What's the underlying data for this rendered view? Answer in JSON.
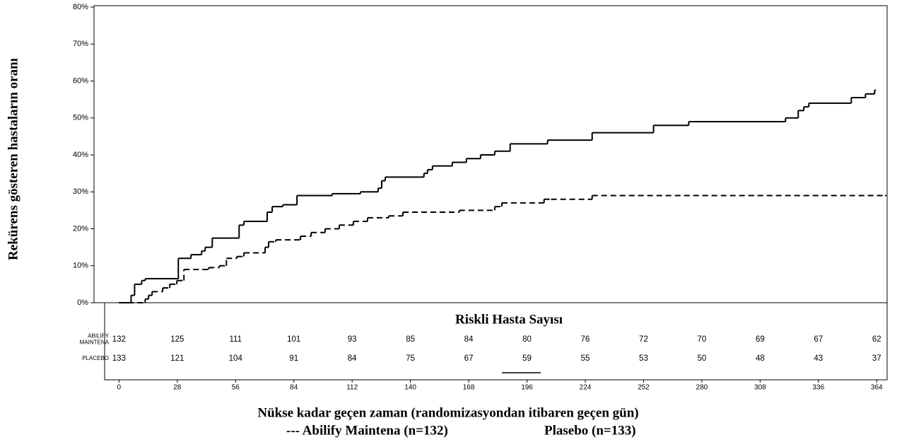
{
  "chart_data": {
    "type": "step",
    "y_label": "Rekürens gösteren hastaların oranı",
    "x_label": "Nükse kadar geçen zaman (randomizasyondan itibaren geçen gün)",
    "xlim": [
      -12,
      369
    ],
    "ylim": [
      0,
      80
    ],
    "xticks": [
      0,
      28,
      56,
      84,
      112,
      140,
      168,
      196,
      224,
      252,
      280,
      308,
      336,
      364
    ],
    "yticks": [
      {
        "value": 0,
        "label": "0%"
      },
      {
        "value": 10,
        "label": "10%"
      },
      {
        "value": 20,
        "label": "20%"
      },
      {
        "value": 30,
        "label": "30%"
      },
      {
        "value": 40,
        "label": "40%"
      },
      {
        "value": 50,
        "label": "50%"
      },
      {
        "value": 60,
        "label": "60%"
      },
      {
        "value": 70,
        "label": "70%"
      },
      {
        "value": 80,
        "label": "80%"
      }
    ],
    "series": [
      {
        "name": "--- Abilify Maintena (n=132)",
        "color": "#000000",
        "dash": true,
        "x": [
          0,
          12.6,
          14.2,
          15.9,
          21,
          24.4,
          27.8,
          31.2,
          43.1,
          48.2,
          51.6,
          56.6,
          60,
          70.2,
          71.9,
          75.3,
          87.2,
          92.3,
          99,
          105.8,
          112.6,
          119.4,
          129.6,
          136.4,
          163.5,
          180.5,
          183.9,
          204.2,
          207.6,
          227.3,
          368
        ],
        "values": [
          0,
          1,
          2,
          3,
          4,
          5,
          6,
          9,
          9.5,
          10,
          12,
          12.5,
          13.5,
          15,
          16.5,
          17,
          18,
          19,
          20,
          21,
          22,
          23,
          23.5,
          24.5,
          25,
          26,
          27,
          28,
          28,
          29,
          29
        ]
      },
      {
        "name": "Plasebo (n=133)",
        "color": "#000000",
        "dash": false,
        "x": [
          0,
          5.8,
          7.5,
          10.9,
          12.6,
          28.5,
          34.6,
          39.7,
          41.4,
          44.8,
          57.7,
          60,
          71.2,
          73.6,
          78.7,
          85.5,
          102.4,
          116,
          124.5,
          126.2,
          127.9,
          146.5,
          148.2,
          150.6,
          160.1,
          166.9,
          173.7,
          180.5,
          187.9,
          205.9,
          227.3,
          256.8,
          273.7,
          320.2,
          326.3,
          329,
          331.4,
          351.8,
          358.6,
          363
        ],
        "values": [
          0,
          2,
          5,
          6,
          6.5,
          12,
          13,
          14,
          15,
          17.5,
          21,
          22,
          24.5,
          26,
          26.5,
          29,
          29.5,
          30,
          31,
          33,
          34,
          35,
          36,
          37,
          38,
          39,
          40,
          41,
          43,
          44,
          46,
          48,
          49,
          50,
          52,
          53,
          54,
          55.5,
          56.5,
          57.5
        ]
      }
    ]
  },
  "risk_table": {
    "title": "Riskli Hasta Sayısı",
    "rows": [
      {
        "label": [
          "ABILIFY",
          "MAINTENA"
        ],
        "values": [
          "132",
          "125",
          "111",
          "101",
          "93",
          "85",
          "84",
          "80",
          "76",
          "72",
          "70",
          "69",
          "67",
          "62"
        ]
      },
      {
        "label": [
          "PLACEBO"
        ],
        "values": [
          "133",
          "121",
          "104",
          "91",
          "84",
          "75",
          "67",
          "59",
          "55",
          "53",
          "50",
          "48",
          "43",
          "37"
        ]
      }
    ]
  }
}
